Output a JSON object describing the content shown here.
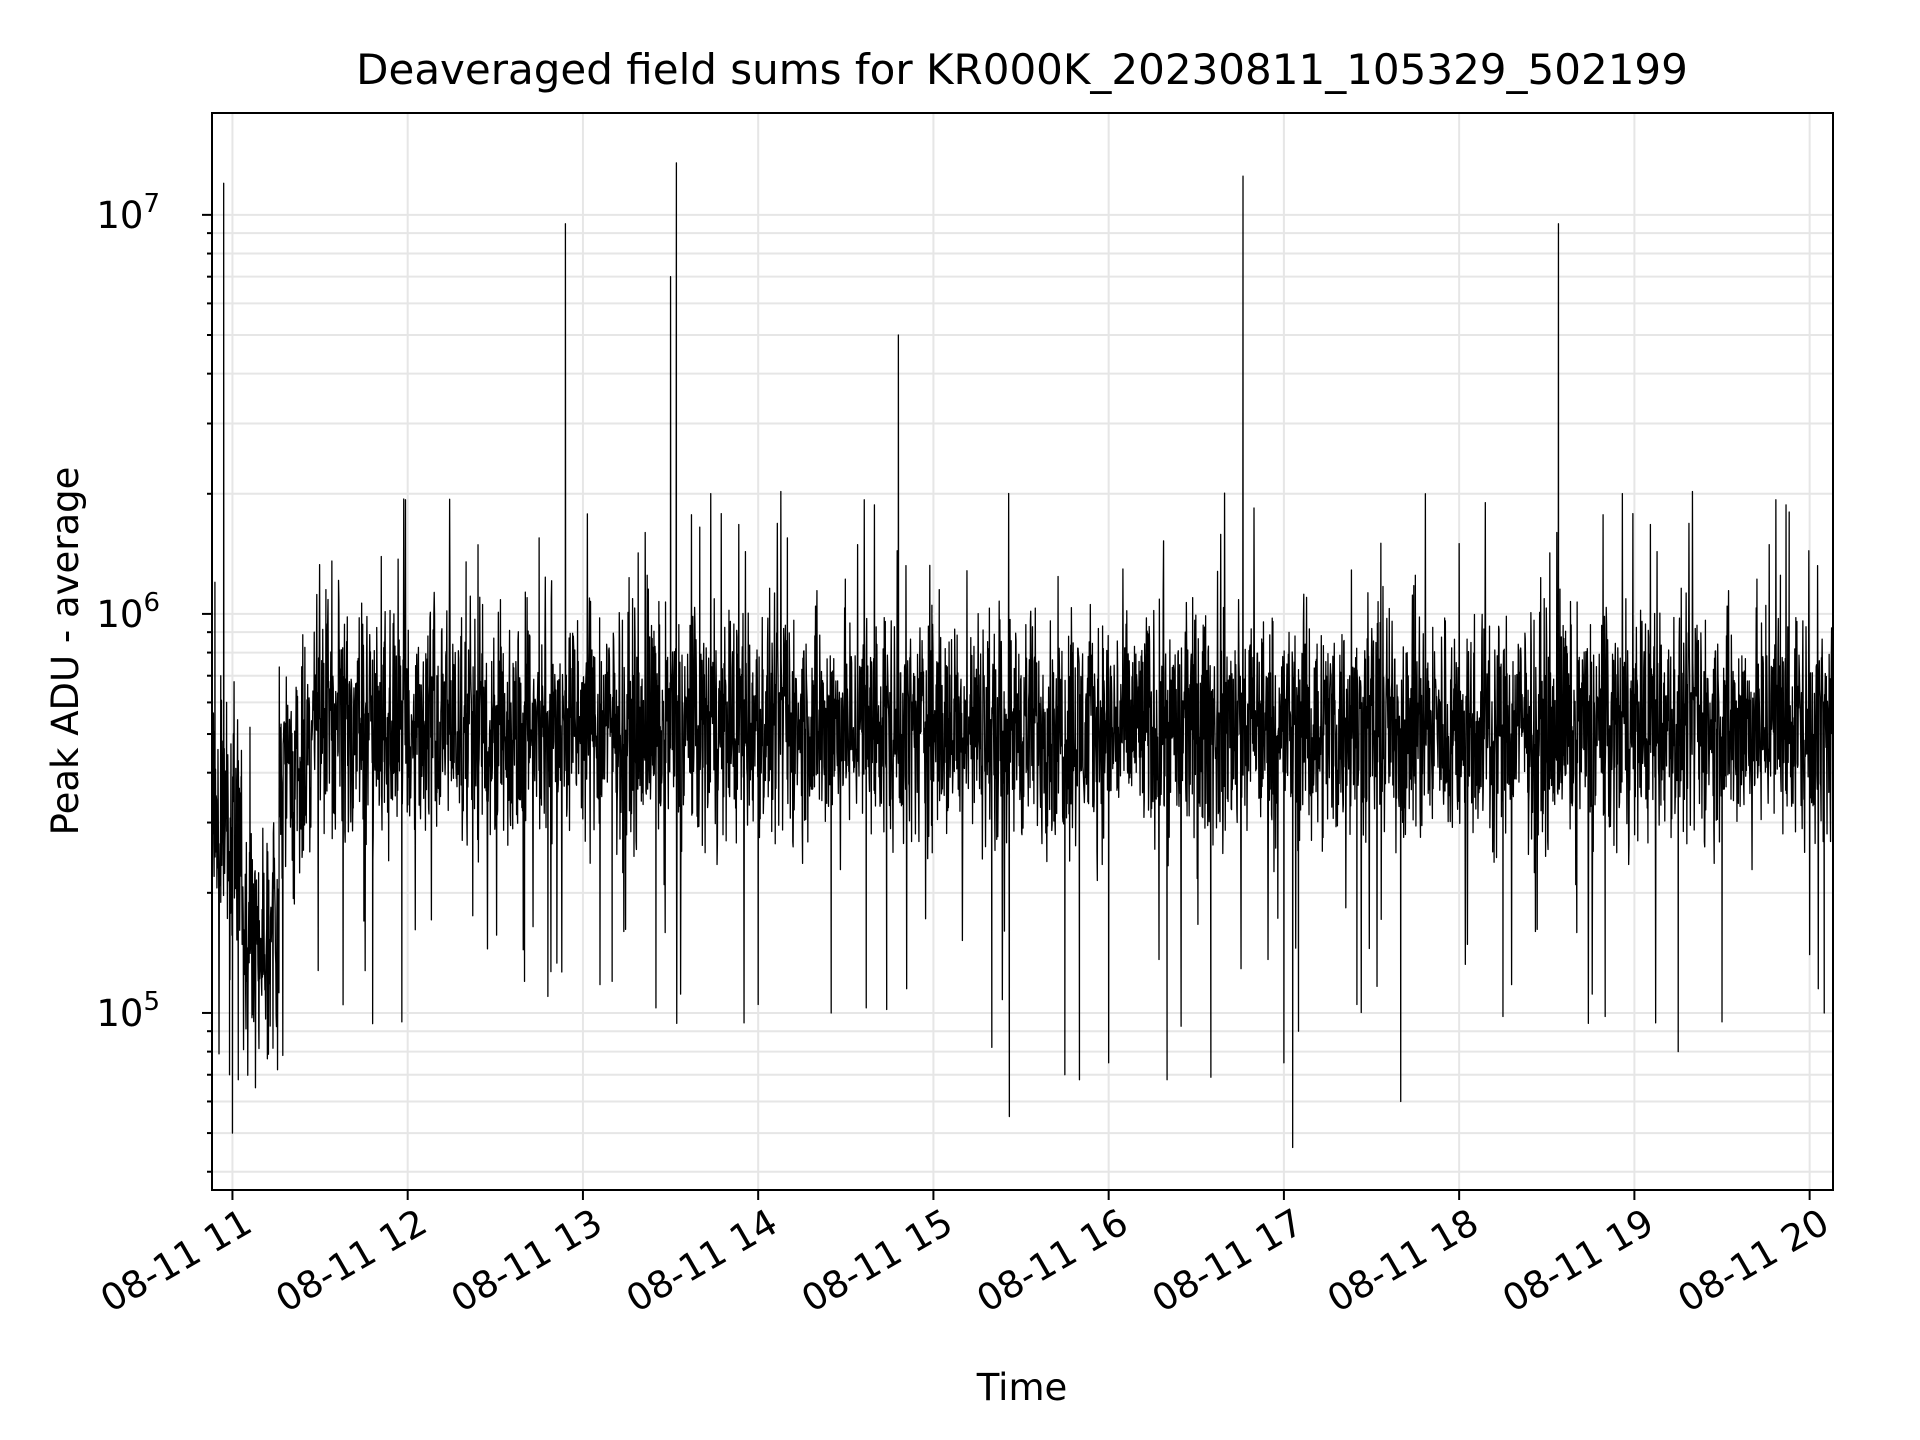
{
  "chart_data": {
    "type": "line",
    "title": "Deaveraged field sums for KR000K_20230811_105329_502199",
    "xlabel": "Time",
    "ylabel": "Peak ADU - average",
    "xscale": "time",
    "yscale": "log",
    "xlim": [
      "2023-08-11 10:53",
      "2023-08-11 20:08"
    ],
    "ylim": [
      36000,
      18000000
    ],
    "x_ticks": [
      "08-11 11",
      "08-11 12",
      "08-11 13",
      "08-11 14",
      "08-11 15",
      "08-11 16",
      "08-11 17",
      "08-11 18",
      "08-11 19",
      "08-11 20"
    ],
    "y_ticks": [
      {
        "base": "10",
        "exp": "5",
        "value": 100000
      },
      {
        "base": "10",
        "exp": "6",
        "value": 1000000
      },
      {
        "base": "10",
        "exp": "7",
        "value": 10000000
      }
    ],
    "grid": true,
    "line_color": "#000000",
    "grid_color": "#e6e6e6",
    "series": [
      {
        "values_description_free": true,
        "points": [
          [
            "2023-08-11 10:53",
            450000
          ],
          [
            "2023-08-11 10:54",
            1200000
          ],
          [
            "2023-08-11 10:55",
            280000
          ],
          [
            "2023-08-11 10:56",
            700000
          ],
          [
            "2023-08-11 10:57",
            12000000
          ],
          [
            "2023-08-11 10:58",
            600000
          ],
          [
            "2023-08-11 10:59",
            200000
          ],
          [
            "2023-08-11 10:59",
            70000
          ],
          [
            "2023-08-11 11:00",
            280000
          ],
          [
            "2023-08-11 11:00",
            50000
          ],
          [
            "2023-08-11 11:01",
            250000
          ],
          [
            "2023-08-11 11:02",
            68000
          ],
          [
            "2023-08-11 11:03",
            220000
          ],
          [
            "2023-08-11 11:05",
            120000
          ],
          [
            "2023-08-11 11:06",
            520000
          ],
          [
            "2023-08-11 11:08",
            150000
          ],
          [
            "2023-08-11 11:09",
            92000
          ],
          [
            "2023-08-11 11:11",
            140000
          ],
          [
            "2023-08-11 11:12",
            91000
          ],
          [
            "2023-08-11 11:14",
            260000
          ],
          [
            "2023-08-11 11:16",
            480000
          ],
          [
            "2023-08-11 11:20",
            420000
          ],
          [
            "2023-08-11 11:24",
            560000
          ],
          [
            "2023-08-11 11:28",
            900000
          ],
          [
            "2023-08-11 11:32",
            1150000
          ],
          [
            "2023-08-11 11:40",
            600000
          ],
          [
            "2023-08-11 11:45",
            170000
          ],
          [
            "2023-08-11 11:48",
            94000
          ],
          [
            "2023-08-11 11:52",
            850000
          ],
          [
            "2023-08-11 11:58",
            95000
          ],
          [
            "2023-08-11 12:10",
            700000
          ],
          [
            "2023-08-11 12:20",
            1350000
          ],
          [
            "2023-08-11 12:30",
            450000
          ],
          [
            "2023-08-11 12:40",
            120000
          ],
          [
            "2023-08-11 12:45",
            1550000
          ],
          [
            "2023-08-11 12:48",
            110000
          ],
          [
            "2023-08-11 12:51",
            500000
          ],
          [
            "2023-08-11 12:54",
            9500000
          ],
          [
            "2023-08-11 12:55",
            500000
          ],
          [
            "2023-08-11 13:10",
            120000
          ],
          [
            "2023-08-11 13:22",
            1250000
          ],
          [
            "2023-08-11 13:25",
            103000
          ],
          [
            "2023-08-11 13:30",
            7000000
          ],
          [
            "2023-08-11 13:32",
            13500000
          ],
          [
            "2023-08-11 13:33",
            500000
          ],
          [
            "2023-08-11 13:40",
            1650000
          ],
          [
            "2023-08-11 14:00",
            105000
          ],
          [
            "2023-08-11 14:10",
            1550000
          ],
          [
            "2023-08-11 14:25",
            100000
          ],
          [
            "2023-08-11 14:37",
            103000
          ],
          [
            "2023-08-11 14:44",
            102000
          ],
          [
            "2023-08-11 14:48",
            5000000
          ],
          [
            "2023-08-11 14:50",
            500000
          ],
          [
            "2023-08-11 15:02",
            1150000
          ],
          [
            "2023-08-11 15:20",
            82000
          ],
          [
            "2023-08-11 15:26",
            55000
          ],
          [
            "2023-08-11 15:30",
            700000
          ],
          [
            "2023-08-11 15:45",
            70000
          ],
          [
            "2023-08-11 15:50",
            68000
          ],
          [
            "2023-08-11 16:00",
            75000
          ],
          [
            "2023-08-11 16:20",
            68000
          ],
          [
            "2023-08-11 16:35",
            69000
          ],
          [
            "2023-08-11 16:46",
            12500000
          ],
          [
            "2023-08-11 16:48",
            500000
          ],
          [
            "2023-08-11 17:00",
            75000
          ],
          [
            "2023-08-11 17:03",
            46000
          ],
          [
            "2023-08-11 17:05",
            90000
          ],
          [
            "2023-08-11 17:25",
            105000
          ],
          [
            "2023-08-11 17:40",
            60000
          ],
          [
            "2023-08-11 17:45",
            1250000
          ],
          [
            "2023-08-11 18:00",
            1500000
          ],
          [
            "2023-08-11 18:15",
            98000
          ],
          [
            "2023-08-11 18:34",
            9500000
          ],
          [
            "2023-08-11 18:36",
            500000
          ],
          [
            "2023-08-11 18:50",
            98000
          ],
          [
            "2023-08-11 19:15",
            80000
          ],
          [
            "2023-08-11 19:30",
            95000
          ],
          [
            "2023-08-11 19:45",
            1050000
          ],
          [
            "2023-08-11 19:50",
            1250000
          ],
          [
            "2023-08-11 19:53",
            1800000
          ],
          [
            "2023-08-11 20:00",
            140000
          ],
          [
            "2023-08-11 20:05",
            100000
          ],
          [
            "2023-08-11 20:08",
            350000
          ]
        ]
      }
    ],
    "random_seed": 7
  }
}
